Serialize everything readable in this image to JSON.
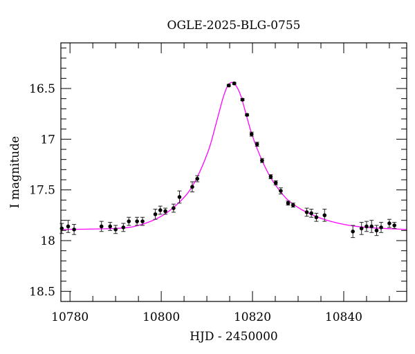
{
  "chart_data": {
    "type": "scatter",
    "title": "OGLE-2025-BLG-0755",
    "xlabel": "HJD - 2450000",
    "ylabel": "I magnitude",
    "xlim": [
      10778.0,
      10853.8
    ],
    "ylim": [
      18.6,
      16.05
    ],
    "y_inverted": true,
    "x_major_ticks": [
      10780,
      10800,
      10820,
      10840
    ],
    "x_tick_labels": [
      "10780",
      "10800",
      "10820",
      "10840"
    ],
    "x_minor_step": 5,
    "y_major_ticks": [
      16.5,
      17,
      17.5,
      18,
      18.5
    ],
    "y_tick_labels": [
      "16.5",
      "17",
      "17.5",
      "18",
      "18.5"
    ],
    "y_minor_step": 0.1,
    "grid": false,
    "colors": {
      "points": "#000000",
      "model": "#ff00ff"
    },
    "series": [
      {
        "kind": "points_with_errorbars",
        "x": [
          10778.2,
          10779.6,
          10780.9,
          10786.9,
          10788.8,
          10790.0,
          10791.7,
          10792.9,
          10794.7,
          10795.9,
          10798.7,
          10799.8,
          10800.9,
          10802.7,
          10804.0,
          10806.8,
          10807.9,
          10814.8,
          10816.0,
          10817.8,
          10818.8,
          10819.8,
          10821.0,
          10822.1,
          10824.0,
          10825.1,
          10826.2,
          10827.8,
          10828.9,
          10831.9,
          10832.9,
          10834.0,
          10835.8,
          10842.0,
          10843.9,
          10845.0,
          10846.1,
          10847.2,
          10848.2,
          10850.0,
          10851.1
        ],
        "y": [
          17.88,
          17.86,
          17.89,
          17.86,
          17.86,
          17.89,
          17.87,
          17.81,
          17.81,
          17.81,
          17.74,
          17.7,
          17.71,
          17.68,
          17.57,
          17.47,
          17.39,
          16.47,
          16.45,
          16.61,
          16.76,
          16.95,
          17.05,
          17.21,
          17.37,
          17.43,
          17.51,
          17.63,
          17.65,
          17.72,
          17.73,
          17.77,
          17.75,
          17.91,
          17.88,
          17.86,
          17.86,
          17.9,
          17.87,
          17.83,
          17.85
        ],
        "err": [
          0.05,
          0.06,
          0.05,
          0.05,
          0.04,
          0.04,
          0.04,
          0.04,
          0.04,
          0.04,
          0.05,
          0.04,
          0.03,
          0.04,
          0.06,
          0.05,
          0.03,
          0.01,
          0.01,
          0.01,
          0.01,
          0.02,
          0.02,
          0.02,
          0.02,
          0.02,
          0.03,
          0.02,
          0.02,
          0.04,
          0.04,
          0.04,
          0.06,
          0.06,
          0.06,
          0.05,
          0.06,
          0.05,
          0.05,
          0.04,
          0.03
        ]
      },
      {
        "kind": "model_curve",
        "x": [
          10778.0,
          10790,
          10795,
          10800,
          10804,
          10807,
          10810.2,
          10812,
          10813.5,
          10814.5,
          10815.5,
          10816.5,
          10817.5,
          10819,
          10820,
          10822,
          10824,
          10826,
          10828,
          10831,
          10835,
          10840,
          10845,
          10853.8
        ],
        "y": [
          17.89,
          17.88,
          17.85,
          17.76,
          17.62,
          17.45,
          17.13,
          16.85,
          16.6,
          16.48,
          16.44,
          16.48,
          16.58,
          16.82,
          16.97,
          17.2,
          17.38,
          17.51,
          17.61,
          17.7,
          17.78,
          17.84,
          17.87,
          17.89
        ]
      }
    ]
  }
}
